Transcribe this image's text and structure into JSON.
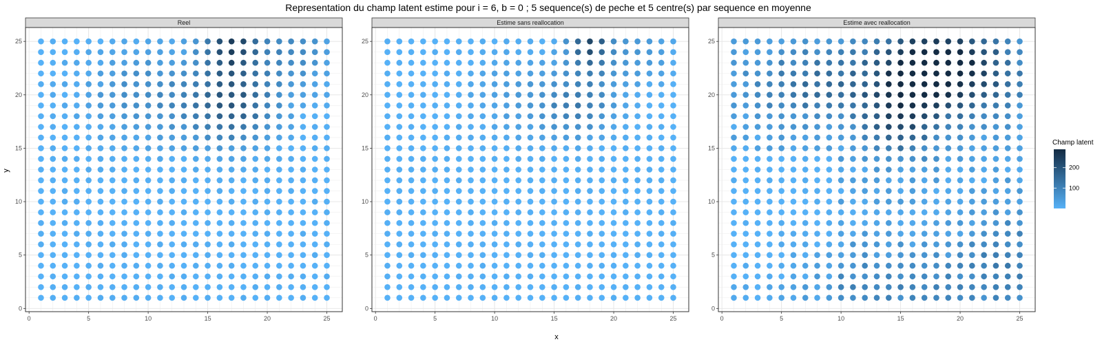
{
  "chart_data": {
    "type": "scatter",
    "title": "Representation du champ latent estime pour i = 6, b = 0 ; 5 sequence(s) de peche et 5 centre(s) par sequence en moyenne",
    "xlabel": "x",
    "ylabel": "y",
    "xlim": [
      -0.3,
      26.3
    ],
    "ylim": [
      -0.3,
      26.3
    ],
    "x_ticks": [
      0,
      5,
      10,
      15,
      20,
      25
    ],
    "y_ticks": [
      0,
      5,
      10,
      15,
      20,
      25
    ],
    "grid": true,
    "grid_x": [
      1,
      25
    ],
    "grid_y": [
      1,
      25
    ],
    "legend": {
      "title": "Champ latent",
      "position": "right",
      "ticks": [
        100,
        200
      ],
      "min": 0,
      "max": 290,
      "color_low": "#56B1F7",
      "color_high": "#132B43"
    },
    "panels": [
      {
        "label": "Reel",
        "peaks": [
          {
            "x": 17,
            "y": 25,
            "amp": 240,
            "sx": 1.6,
            "sy": 2.2
          },
          {
            "x": 17,
            "y": 19,
            "amp": 180,
            "sx": 2.5,
            "sy": 2.5
          },
          {
            "x": 10,
            "y": 20,
            "amp": 80,
            "sx": 3.5,
            "sy": 3.0
          },
          {
            "x": 22,
            "y": 24,
            "amp": 80,
            "sx": 2.5,
            "sy": 2.5
          }
        ],
        "base": 0,
        "noise": 12,
        "low_region": null
      },
      {
        "label": "Estime sans reallocation",
        "peaks": [
          {
            "x": 18,
            "y": 25,
            "amp": 220,
            "sx": 1.2,
            "sy": 2.0
          },
          {
            "x": 17,
            "y": 19,
            "amp": 110,
            "sx": 2.2,
            "sy": 2.0
          },
          {
            "x": 22,
            "y": 24,
            "amp": 60,
            "sx": 2.0,
            "sy": 2.0
          },
          {
            "x": 12,
            "y": 20,
            "amp": 40,
            "sx": 3.0,
            "sy": 3.0
          }
        ],
        "base": 0,
        "noise": 8,
        "low_region": null
      },
      {
        "label": "Estime avec reallocation",
        "peaks": [
          {
            "x": 17,
            "y": 23,
            "amp": 250,
            "sx": 3.0,
            "sy": 2.5
          },
          {
            "x": 15,
            "y": 18,
            "amp": 200,
            "sx": 2.2,
            "sy": 2.5
          },
          {
            "x": 21,
            "y": 22,
            "amp": 170,
            "sx": 3.0,
            "sy": 3.0
          },
          {
            "x": 8,
            "y": 21,
            "amp": 120,
            "sx": 4.0,
            "sy": 2.5
          },
          {
            "x": 14,
            "y": 2,
            "amp": 70,
            "sx": 7.0,
            "sy": 2.5
          },
          {
            "x": 24,
            "y": 5,
            "amp": 70,
            "sx": 2.5,
            "sy": 3.0
          }
        ],
        "base": 25,
        "noise": 22,
        "low_region": {
          "x0": 1,
          "x1": 9,
          "y0": 1,
          "y1": 14
        }
      }
    ]
  }
}
